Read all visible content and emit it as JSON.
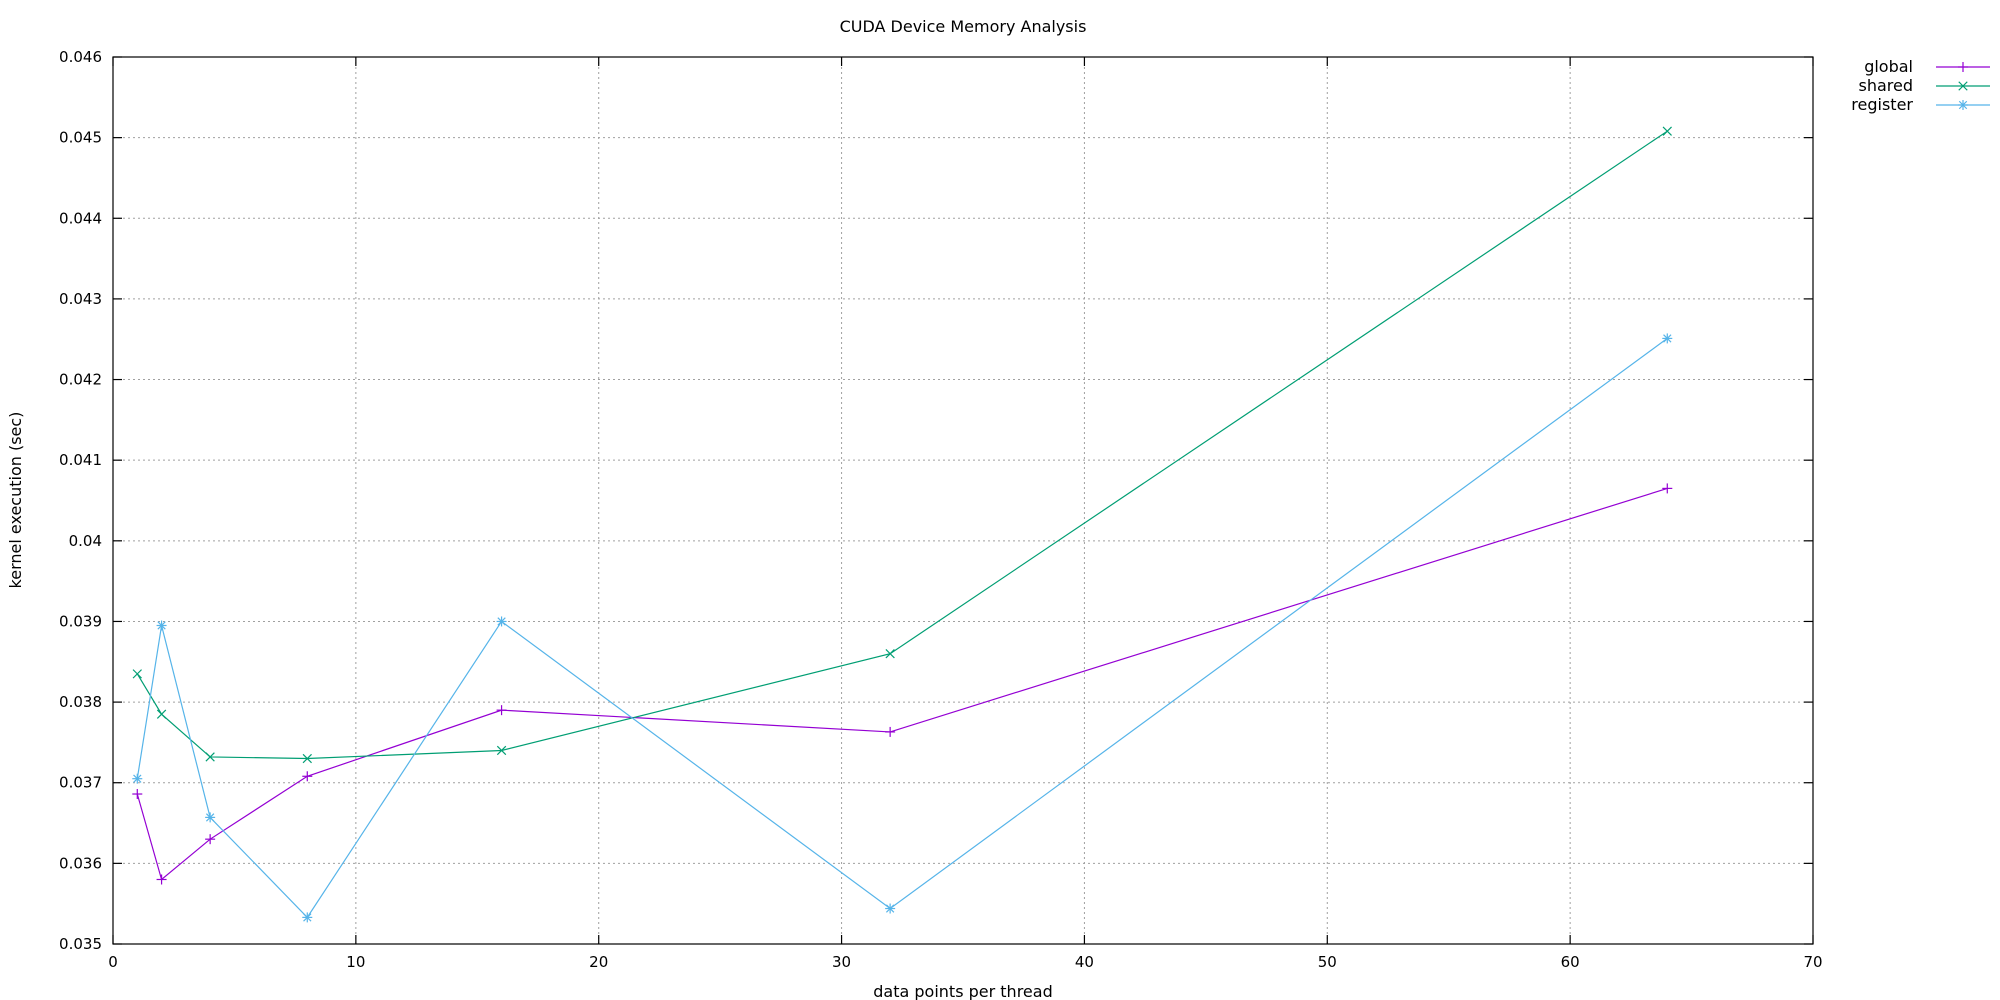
{
  "chart_data": {
    "type": "line",
    "title": "CUDA Device Memory Analysis",
    "xlabel": "data points per thread",
    "ylabel": "kernel execution (sec)",
    "xlim": [
      0,
      70
    ],
    "ylim": [
      0.035,
      0.046
    ],
    "xticks": [
      0,
      10,
      20,
      30,
      40,
      50,
      60,
      70
    ],
    "xtick_labels": [
      "0",
      "10",
      "20",
      "30",
      "40",
      "50",
      "60",
      "70"
    ],
    "yticks": [
      0.035,
      0.036,
      0.037,
      0.038,
      0.039,
      0.04,
      0.041,
      0.042,
      0.043,
      0.044,
      0.045,
      0.046
    ],
    "ytick_labels": [
      "0.035",
      "0.036",
      "0.037",
      "0.038",
      "0.039",
      "0.04",
      "0.041",
      "0.042",
      "0.043",
      "0.044",
      "0.045",
      "0.046"
    ],
    "grid": true,
    "legend_position": "top-right outside",
    "x": [
      1,
      2,
      4,
      8,
      16,
      32,
      64
    ],
    "series": [
      {
        "name": "global",
        "color": "#9400d3",
        "marker": "plus",
        "values": [
          0.03686,
          0.0358,
          0.0363,
          0.03708,
          0.0379,
          0.03763,
          0.04065
        ]
      },
      {
        "name": "shared",
        "color": "#009e73",
        "marker": "cross",
        "values": [
          0.03835,
          0.03785,
          0.03732,
          0.0373,
          0.0374,
          0.0386,
          0.04508
        ]
      },
      {
        "name": "register",
        "color": "#56b4e9",
        "marker": "star",
        "values": [
          0.03705,
          0.03895,
          0.03657,
          0.03533,
          0.039,
          0.03544,
          0.04251
        ]
      }
    ]
  }
}
